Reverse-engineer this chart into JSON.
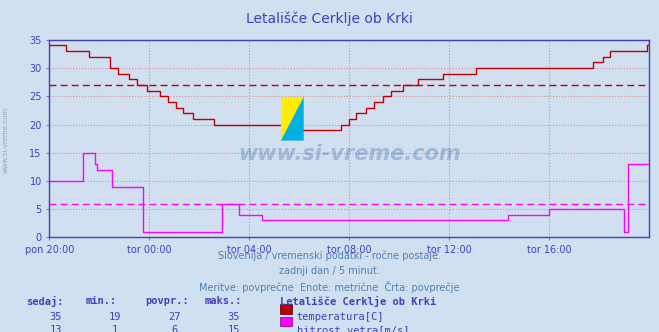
{
  "title": "Letališče Cerklje ob Krki",
  "bg_color": "#d0e0f0",
  "plot_bg_color": "#d0e0f0",
  "grid_color_major": "#e08080",
  "grid_color_minor": "#ecc0c0",
  "tick_color": "#4040c0",
  "title_color": "#4040c0",
  "text_color": "#5080b0",
  "temp_color": "#c00000",
  "wind_color": "#ff00ff",
  "avg_temp_color": "#c00000",
  "avg_wind_color": "#ff00ff",
  "axis_color": "#4040c0",
  "ylim": [
    0,
    35
  ],
  "yticks": [
    0,
    5,
    10,
    15,
    20,
    25,
    30,
    35
  ],
  "avg_temp": 27,
  "avg_wind": 6,
  "subtitle1": "Slovenija / vremenski podatki - ročne postaje.",
  "subtitle2": "zadnji dan / 5 minut.",
  "subtitle3": "Meritve: povprečne  Enote: metrične  Črta: povprečje",
  "legend_title": "Letališče Cerklje ob Krki",
  "legend_items": [
    {
      "label": "temperatura[C]",
      "color": "#c00000"
    },
    {
      "label": "hitrost vetra[m/s]",
      "color": "#ff00ff"
    }
  ],
  "table_headers": [
    "sedaj:",
    "min.:",
    "povpr.:",
    "maks.:"
  ],
  "table_row1": [
    35,
    19,
    27,
    35
  ],
  "table_row2": [
    13,
    1,
    6,
    15
  ],
  "xtick_labels": [
    "pon 20:00",
    "tor 00:00",
    "tor 04:00",
    "tor 08:00",
    "tor 12:00",
    "tor 16:00"
  ],
  "n_points": 289,
  "temp_data": [
    34,
    34,
    34,
    34,
    34,
    34,
    34,
    34,
    33,
    33,
    33,
    33,
    33,
    33,
    33,
    33,
    33,
    33,
    33,
    32,
    32,
    32,
    32,
    32,
    32,
    32,
    32,
    32,
    32,
    30,
    30,
    30,
    30,
    29,
    29,
    29,
    29,
    29,
    28,
    28,
    28,
    28,
    27,
    27,
    27,
    27,
    27,
    26,
    26,
    26,
    26,
    26,
    26,
    25,
    25,
    25,
    25,
    24,
    24,
    24,
    24,
    23,
    23,
    23,
    22,
    22,
    22,
    22,
    22,
    21,
    21,
    21,
    21,
    21,
    21,
    21,
    21,
    21,
    21,
    20,
    20,
    20,
    20,
    20,
    20,
    20,
    20,
    20,
    20,
    20,
    20,
    20,
    20,
    20,
    20,
    20,
    20,
    20,
    20,
    20,
    20,
    20,
    20,
    20,
    20,
    20,
    20,
    20,
    20,
    20,
    20,
    20,
    20,
    20,
    20,
    20,
    20,
    20,
    20,
    20,
    20,
    19,
    19,
    19,
    19,
    19,
    19,
    19,
    19,
    19,
    19,
    19,
    19,
    19,
    19,
    19,
    19,
    19,
    19,
    19,
    20,
    20,
    20,
    20,
    21,
    21,
    21,
    22,
    22,
    22,
    22,
    22,
    23,
    23,
    23,
    23,
    24,
    24,
    24,
    24,
    25,
    25,
    25,
    25,
    26,
    26,
    26,
    26,
    26,
    26,
    27,
    27,
    27,
    27,
    27,
    27,
    27,
    28,
    28,
    28,
    28,
    28,
    28,
    28,
    28,
    28,
    28,
    28,
    28,
    29,
    29,
    29,
    29,
    29,
    29,
    29,
    29,
    29,
    29,
    29,
    29,
    29,
    29,
    29,
    29,
    30,
    30,
    30,
    30,
    30,
    30,
    30,
    30,
    30,
    30,
    30,
    30,
    30,
    30,
    30,
    30,
    30,
    30,
    30,
    30,
    30,
    30,
    30,
    30,
    30,
    30,
    30,
    30,
    30,
    30,
    30,
    30,
    30,
    30,
    30,
    30,
    30,
    30,
    30,
    30,
    30,
    30,
    30,
    30,
    30,
    30,
    30,
    30,
    30,
    30,
    30,
    30,
    30,
    30,
    30,
    30,
    31,
    31,
    31,
    31,
    31,
    32,
    32,
    32,
    33,
    33,
    33,
    33,
    33,
    33,
    33,
    33,
    33,
    33,
    33,
    33,
    33,
    33,
    33,
    33,
    33,
    33,
    34,
    35
  ],
  "wind_data": [
    10,
    10,
    10,
    10,
    10,
    10,
    10,
    10,
    10,
    10,
    10,
    10,
    10,
    10,
    10,
    10,
    15,
    15,
    15,
    15,
    15,
    15,
    13,
    12,
    12,
    12,
    12,
    12,
    12,
    12,
    9,
    9,
    9,
    9,
    9,
    9,
    9,
    9,
    9,
    9,
    9,
    9,
    9,
    9,
    9,
    1,
    1,
    1,
    1,
    1,
    1,
    1,
    1,
    1,
    1,
    1,
    1,
    1,
    1,
    1,
    1,
    1,
    1,
    1,
    1,
    1,
    1,
    1,
    1,
    1,
    1,
    1,
    1,
    1,
    1,
    1,
    1,
    1,
    1,
    1,
    1,
    1,
    1,
    6,
    6,
    6,
    6,
    6,
    6,
    6,
    6,
    4,
    4,
    4,
    4,
    4,
    4,
    4,
    4,
    4,
    4,
    4,
    3,
    3,
    3,
    3,
    3,
    3,
    3,
    3,
    3,
    3,
    3,
    3,
    3,
    3,
    3,
    3,
    3,
    3,
    3,
    3,
    3,
    3,
    3,
    3,
    3,
    3,
    3,
    3,
    3,
    3,
    3,
    3,
    3,
    3,
    3,
    3,
    3,
    3,
    3,
    3,
    3,
    3,
    3,
    3,
    3,
    3,
    3,
    3,
    3,
    3,
    3,
    3,
    3,
    3,
    3,
    3,
    3,
    3,
    3,
    3,
    3,
    3,
    3,
    3,
    3,
    3,
    3,
    3,
    3,
    3,
    3,
    3,
    3,
    3,
    3,
    3,
    3,
    3,
    3,
    3,
    3,
    3,
    3,
    3,
    3,
    3,
    3,
    3,
    3,
    3,
    3,
    3,
    3,
    3,
    3,
    3,
    3,
    3,
    3,
    3,
    3,
    3,
    3,
    3,
    3,
    3,
    3,
    3,
    3,
    3,
    3,
    3,
    3,
    3,
    3,
    3,
    3,
    3,
    4,
    4,
    4,
    4,
    4,
    4,
    4,
    4,
    4,
    4,
    4,
    4,
    4,
    4,
    4,
    4,
    4,
    4,
    4,
    4,
    5,
    5,
    5,
    5,
    5,
    5,
    5,
    5,
    5,
    5,
    5,
    5,
    5,
    5,
    5,
    5,
    5,
    5,
    5,
    5,
    5,
    5,
    5,
    5,
    5,
    5,
    5,
    5,
    5,
    5,
    5,
    5,
    5,
    5,
    5,
    5,
    1,
    1,
    13,
    13,
    13,
    13,
    13,
    13,
    13,
    13,
    13,
    13,
    13
  ]
}
